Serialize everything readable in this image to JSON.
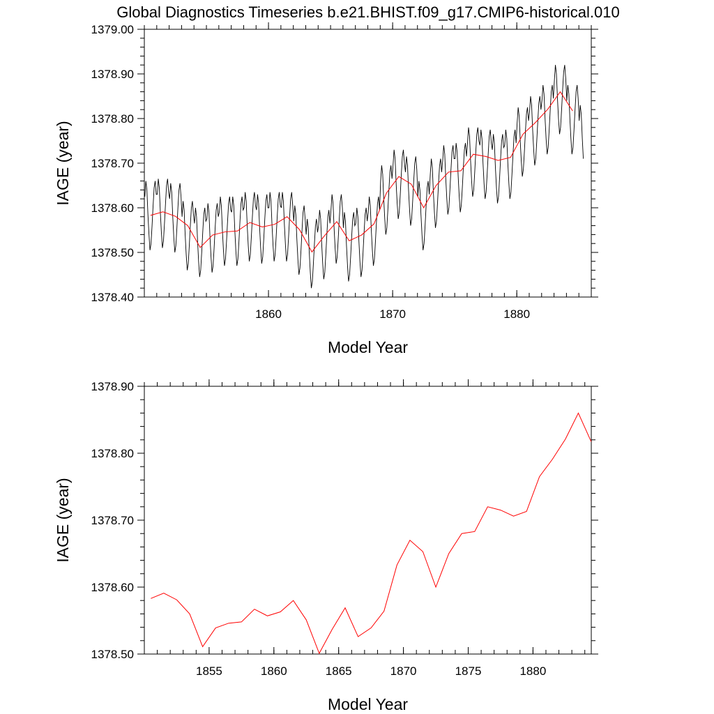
{
  "title": "Global Diagnostics Timeseries b.e21.BHIST.f09_g17.CMIP6-historical.010",
  "colors": {
    "monthly": "#000000",
    "annual": "#ff0000"
  },
  "chart_data": [
    {
      "type": "line",
      "xlabel": "Model Year",
      "ylabel": "IAGE (year)",
      "xlim": [
        1850,
        1886
      ],
      "ylim": [
        1378.4,
        1379.0
      ],
      "x_ticks": [
        "1860",
        "1870",
        "1880"
      ],
      "y_ticks": [
        "1378.40",
        "1378.50",
        "1378.60",
        "1378.70",
        "1378.80",
        "1378.90",
        "1379.00"
      ],
      "grid": false,
      "series": [
        {
          "style": "monthly",
          "x_start": 1850.04,
          "x_step": 0.0833,
          "values": [
            1378.625,
            1378.66,
            1378.64,
            1378.585,
            1378.54,
            1378.505,
            1378.52,
            1378.56,
            1378.605,
            1378.645,
            1378.66,
            1378.63,
            1378.63,
            1378.665,
            1378.645,
            1378.59,
            1378.545,
            1378.51,
            1378.525,
            1378.565,
            1378.61,
            1378.65,
            1378.665,
            1378.635,
            1378.62,
            1378.655,
            1378.635,
            1378.58,
            1378.535,
            1378.5,
            1378.515,
            1378.555,
            1378.6,
            1378.64,
            1378.655,
            1378.625,
            1378.58,
            1378.615,
            1378.595,
            1378.54,
            1378.495,
            1378.46,
            1378.475,
            1378.515,
            1378.56,
            1378.6,
            1378.615,
            1378.585,
            1378.565,
            1378.6,
            1378.58,
            1378.525,
            1378.48,
            1378.445,
            1378.46,
            1378.5,
            1378.545,
            1378.585,
            1378.6,
            1378.57,
            1378.575,
            1378.61,
            1378.59,
            1378.535,
            1378.49,
            1378.455,
            1378.47,
            1378.51,
            1378.555,
            1378.595,
            1378.61,
            1378.58,
            1378.59,
            1378.625,
            1378.605,
            1378.55,
            1378.505,
            1378.47,
            1378.485,
            1378.525,
            1378.57,
            1378.61,
            1378.625,
            1378.595,
            1378.59,
            1378.625,
            1378.605,
            1378.55,
            1378.505,
            1378.47,
            1378.485,
            1378.525,
            1378.57,
            1378.61,
            1378.625,
            1378.595,
            1378.6,
            1378.635,
            1378.615,
            1378.56,
            1378.515,
            1378.48,
            1378.495,
            1378.535,
            1378.58,
            1378.62,
            1378.635,
            1378.605,
            1378.595,
            1378.63,
            1378.61,
            1378.555,
            1378.51,
            1378.475,
            1378.49,
            1378.53,
            1378.575,
            1378.615,
            1378.63,
            1378.6,
            1378.6,
            1378.635,
            1378.615,
            1378.56,
            1378.515,
            1378.48,
            1378.495,
            1378.535,
            1378.58,
            1378.62,
            1378.635,
            1378.605,
            1378.6,
            1378.635,
            1378.615,
            1378.56,
            1378.515,
            1378.48,
            1378.495,
            1378.535,
            1378.58,
            1378.62,
            1378.635,
            1378.605,
            1378.57,
            1378.605,
            1378.585,
            1378.53,
            1378.485,
            1378.45,
            1378.465,
            1378.505,
            1378.55,
            1378.59,
            1378.605,
            1378.575,
            1378.54,
            1378.575,
            1378.555,
            1378.5,
            1378.455,
            1378.42,
            1378.435,
            1378.475,
            1378.52,
            1378.56,
            1378.575,
            1378.545,
            1378.56,
            1378.595,
            1378.575,
            1378.52,
            1378.475,
            1378.44,
            1378.455,
            1378.495,
            1378.54,
            1378.58,
            1378.595,
            1378.565,
            1378.595,
            1378.63,
            1378.61,
            1378.555,
            1378.51,
            1378.475,
            1378.49,
            1378.53,
            1378.575,
            1378.615,
            1378.63,
            1378.6,
            1378.555,
            1378.59,
            1378.57,
            1378.515,
            1378.47,
            1378.435,
            1378.45,
            1378.49,
            1378.535,
            1378.575,
            1378.59,
            1378.56,
            1378.565,
            1378.6,
            1378.58,
            1378.525,
            1378.48,
            1378.445,
            1378.46,
            1378.5,
            1378.545,
            1378.585,
            1378.6,
            1378.57,
            1378.59,
            1378.625,
            1378.605,
            1378.55,
            1378.505,
            1378.47,
            1378.485,
            1378.525,
            1378.57,
            1378.61,
            1378.625,
            1378.595,
            1378.66,
            1378.695,
            1378.675,
            1378.62,
            1378.575,
            1378.54,
            1378.555,
            1378.595,
            1378.64,
            1378.68,
            1378.695,
            1378.665,
            1378.695,
            1378.73,
            1378.71,
            1378.655,
            1378.61,
            1378.575,
            1378.59,
            1378.63,
            1378.675,
            1378.715,
            1378.73,
            1378.7,
            1378.68,
            1378.715,
            1378.695,
            1378.64,
            1378.595,
            1378.56,
            1378.575,
            1378.615,
            1378.66,
            1378.7,
            1378.715,
            1378.685,
            1378.625,
            1378.66,
            1378.64,
            1378.585,
            1378.54,
            1378.505,
            1378.52,
            1378.56,
            1378.605,
            1378.645,
            1378.66,
            1378.63,
            1378.675,
            1378.71,
            1378.69,
            1378.635,
            1378.59,
            1378.555,
            1378.57,
            1378.61,
            1378.655,
            1378.695,
            1378.71,
            1378.68,
            1378.705,
            1378.74,
            1378.72,
            1378.665,
            1378.62,
            1378.585,
            1378.6,
            1378.64,
            1378.685,
            1378.725,
            1378.74,
            1378.71,
            1378.71,
            1378.745,
            1378.725,
            1378.67,
            1378.625,
            1378.59,
            1378.605,
            1378.645,
            1378.69,
            1378.73,
            1378.745,
            1378.715,
            1378.745,
            1378.78,
            1378.76,
            1378.705,
            1378.66,
            1378.625,
            1378.64,
            1378.68,
            1378.725,
            1378.765,
            1378.78,
            1378.75,
            1378.74,
            1378.775,
            1378.755,
            1378.7,
            1378.655,
            1378.62,
            1378.635,
            1378.675,
            1378.72,
            1378.76,
            1378.775,
            1378.745,
            1378.73,
            1378.765,
            1378.745,
            1378.69,
            1378.645,
            1378.61,
            1378.625,
            1378.665,
            1378.71,
            1378.75,
            1378.765,
            1378.735,
            1378.74,
            1378.775,
            1378.755,
            1378.7,
            1378.655,
            1378.62,
            1378.635,
            1378.675,
            1378.72,
            1378.76,
            1378.775,
            1378.745,
            1378.79,
            1378.825,
            1378.805,
            1378.75,
            1378.705,
            1378.67,
            1378.685,
            1378.725,
            1378.77,
            1378.81,
            1378.825,
            1378.795,
            1378.815,
            1378.85,
            1378.83,
            1378.775,
            1378.73,
            1378.695,
            1378.71,
            1378.75,
            1378.795,
            1378.835,
            1378.85,
            1378.82,
            1378.84,
            1378.875,
            1378.855,
            1378.8,
            1378.755,
            1378.72,
            1378.735,
            1378.775,
            1378.82,
            1378.86,
            1378.875,
            1378.845,
            1378.885,
            1378.92,
            1378.9,
            1378.845,
            1378.8,
            1378.765,
            1378.78,
            1378.82,
            1378.865,
            1378.905,
            1378.92,
            1378.89,
            1378.84,
            1378.875,
            1378.855,
            1378.8,
            1378.755,
            1378.72,
            1378.735,
            1378.775,
            1378.82,
            1378.86,
            1378.875,
            1378.845,
            1378.795,
            1378.83,
            1378.81,
            1378.755,
            1378.71
          ]
        },
        {
          "style": "annual",
          "x": [
            1850.5,
            1851.5,
            1852.5,
            1853.5,
            1854.5,
            1855.5,
            1856.5,
            1857.5,
            1858.5,
            1859.5,
            1860.5,
            1861.5,
            1862.5,
            1863.5,
            1864.5,
            1865.5,
            1866.5,
            1867.5,
            1868.5,
            1869.5,
            1870.5,
            1871.5,
            1872.5,
            1873.5,
            1874.5,
            1875.5,
            1876.5,
            1877.5,
            1878.5,
            1879.5,
            1880.5,
            1881.5,
            1882.5,
            1883.5,
            1884.5
          ],
          "values": [
            1378.583,
            1378.591,
            1378.581,
            1378.56,
            1378.511,
            1378.539,
            1378.546,
            1378.548,
            1378.567,
            1378.557,
            1378.563,
            1378.58,
            1378.551,
            1378.501,
            1378.537,
            1378.569,
            1378.526,
            1378.539,
            1378.564,
            1378.633,
            1378.67,
            1378.653,
            1378.6,
            1378.65,
            1378.68,
            1378.683,
            1378.72,
            1378.715,
            1378.706,
            1378.713,
            1378.765,
            1378.791,
            1378.821,
            1378.86,
            1378.817
          ]
        }
      ]
    },
    {
      "type": "line",
      "xlabel": "Model Year",
      "ylabel": "IAGE (year)",
      "xlim": [
        1850,
        1884.5
      ],
      "ylim": [
        1378.5,
        1378.9
      ],
      "x_ticks": [
        "1855",
        "1860",
        "1865",
        "1870",
        "1875",
        "1880"
      ],
      "y_ticks": [
        "1378.50",
        "1378.60",
        "1378.70",
        "1378.80",
        "1378.90"
      ],
      "grid": false,
      "series": [
        {
          "style": "annual",
          "x": [
            1850.5,
            1851.5,
            1852.5,
            1853.5,
            1854.5,
            1855.5,
            1856.5,
            1857.5,
            1858.5,
            1859.5,
            1860.5,
            1861.5,
            1862.5,
            1863.5,
            1864.5,
            1865.5,
            1866.5,
            1867.5,
            1868.5,
            1869.5,
            1870.5,
            1871.5,
            1872.5,
            1873.5,
            1874.5,
            1875.5,
            1876.5,
            1877.5,
            1878.5,
            1879.5,
            1880.5,
            1881.5,
            1882.5,
            1883.5,
            1884.5
          ],
          "values": [
            1378.583,
            1378.591,
            1378.581,
            1378.56,
            1378.511,
            1378.539,
            1378.546,
            1378.548,
            1378.567,
            1378.557,
            1378.563,
            1378.58,
            1378.551,
            1378.501,
            1378.537,
            1378.569,
            1378.526,
            1378.539,
            1378.564,
            1378.633,
            1378.67,
            1378.653,
            1378.6,
            1378.65,
            1378.68,
            1378.683,
            1378.72,
            1378.715,
            1378.706,
            1378.713,
            1378.765,
            1378.791,
            1378.821,
            1378.86,
            1378.817
          ]
        }
      ]
    }
  ]
}
